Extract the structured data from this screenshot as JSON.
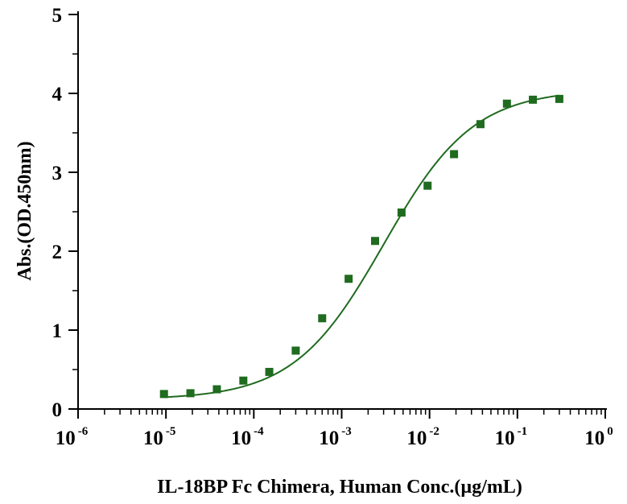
{
  "chart_data": {
    "type": "scatter",
    "xlabel": "IL-18BP Fc Chimera, Human Conc.(µg/mL)",
    "ylabel": "Abs.(OD.450nm)",
    "xscale": "log",
    "xlim": [
      1e-06,
      1
    ],
    "ylim": [
      0,
      5
    ],
    "x_tick_labels": [
      {
        "base": "10",
        "exp": "-6"
      },
      {
        "base": "10",
        "exp": "-5"
      },
      {
        "base": "10",
        "exp": "-4"
      },
      {
        "base": "10",
        "exp": "-3"
      },
      {
        "base": "10",
        "exp": "-2"
      },
      {
        "base": "10",
        "exp": "-1"
      },
      {
        "base": "10",
        "exp": "0"
      }
    ],
    "y_tick_labels": [
      "0",
      "1",
      "2",
      "3",
      "4",
      "5"
    ],
    "grid": false,
    "legend": "none",
    "color": "#1f6b1f",
    "series": [
      {
        "points": [
          {
            "x": 9.5e-06,
            "y": 0.19
          },
          {
            "x": 1.9e-05,
            "y": 0.2
          },
          {
            "x": 3.8e-05,
            "y": 0.25
          },
          {
            "x": 7.6e-05,
            "y": 0.36
          },
          {
            "x": 0.00015,
            "y": 0.47
          },
          {
            "x": 0.0003,
            "y": 0.74
          },
          {
            "x": 0.0006,
            "y": 1.15
          },
          {
            "x": 0.0012,
            "y": 1.65
          },
          {
            "x": 0.0024,
            "y": 2.13
          },
          {
            "x": 0.0048,
            "y": 2.49
          },
          {
            "x": 0.0095,
            "y": 2.83
          },
          {
            "x": 0.019,
            "y": 3.23
          },
          {
            "x": 0.038,
            "y": 3.61
          },
          {
            "x": 0.076,
            "y": 3.87
          },
          {
            "x": 0.15,
            "y": 3.92
          },
          {
            "x": 0.3,
            "y": 3.93
          }
        ],
        "fit": {
          "model": "4PL",
          "bottom": 0.12,
          "top": 4.05,
          "ec50": 0.003,
          "hill": 0.85
        }
      }
    ]
  }
}
